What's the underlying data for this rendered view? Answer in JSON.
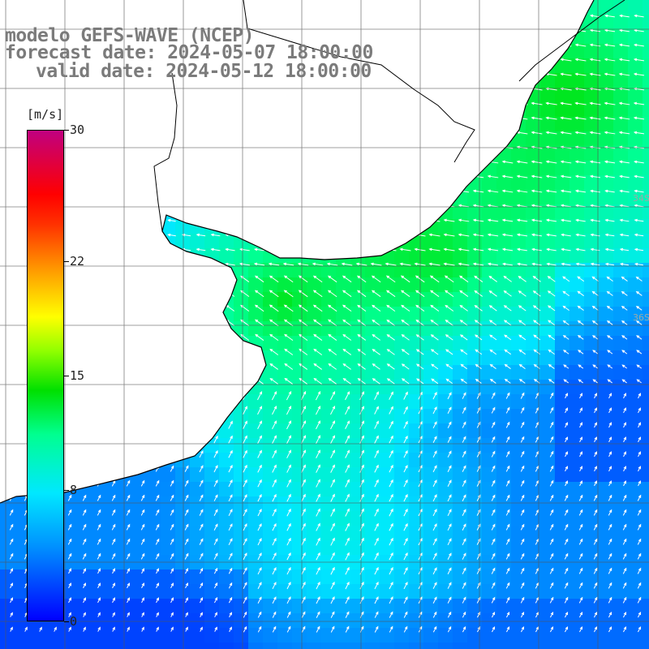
{
  "title": {
    "line1": "modelo GEFS-WAVE (NCEP)",
    "line2": "forecast date: 2024-05-07 18:00:00",
    "line3": "valid date: 2024-05-12 18:00:00"
  },
  "colorbar": {
    "units": "[m/s]",
    "ticks": [
      "30",
      "22",
      "15",
      "8",
      "0"
    ],
    "tick_values": [
      30,
      22,
      15,
      8,
      0
    ],
    "range": [
      0,
      30
    ],
    "colors": [
      "#0000ff",
      "#0090ff",
      "#00e8ff",
      "#00ff90",
      "#00e000",
      "#90ff00",
      "#ffff00",
      "#ffa000",
      "#ff3000",
      "#ff0000",
      "#c00080"
    ]
  },
  "map": {
    "variable": "wind speed and direction",
    "grid": true,
    "land_color": "#ffffff",
    "coastline_color": "#000000",
    "lat_labels_right": [
      "34S",
      "36S"
    ],
    "arrows": "white wind vectors"
  }
}
